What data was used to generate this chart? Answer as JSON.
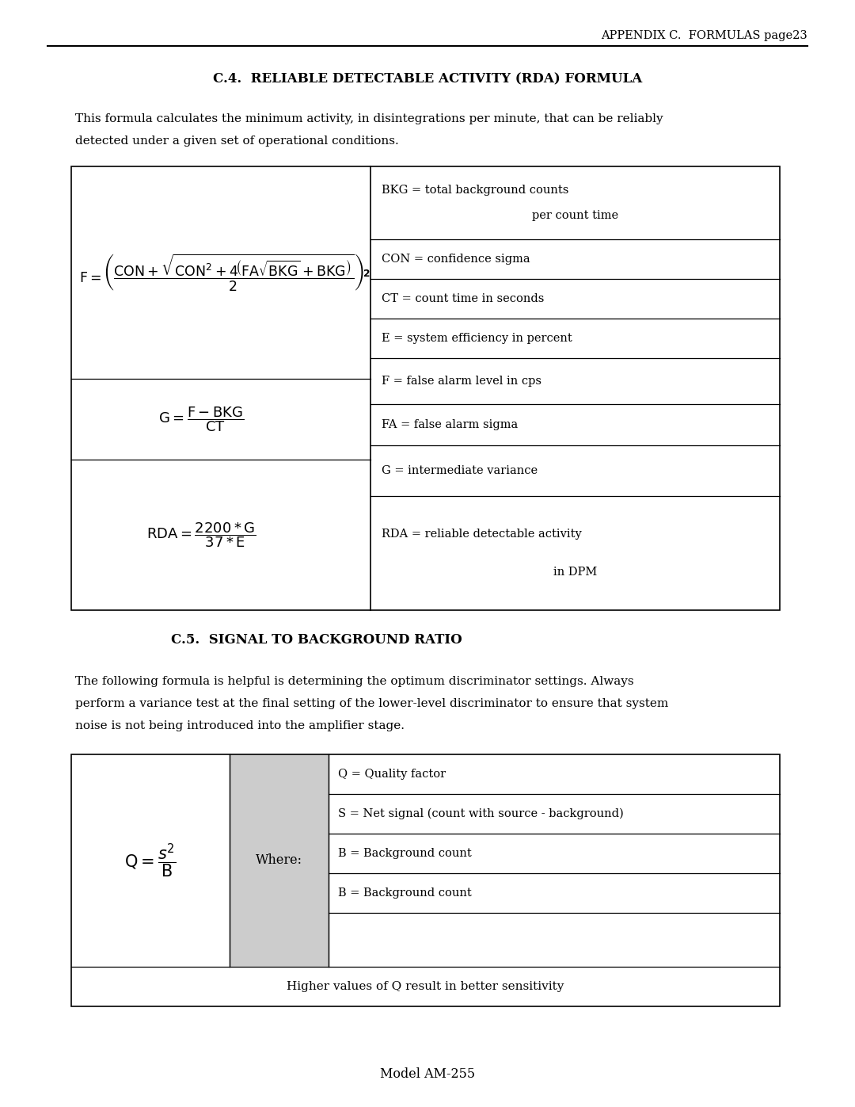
{
  "page_header": "APPENDIX C.  FORMULAS page23",
  "section1_title": "C.4.  RELIABLE DETECTABLE ACTIVITY (RDA) FORMULA",
  "section1_para_1": "This formula calculates the minimum activity, in disintegrations per minute, that can be reliably",
  "section1_para_2": "detected under a given set of operational conditions.",
  "section2_title": "C.5.  SIGNAL TO BACKGROUND RATIO",
  "section2_para_1": "The following formula is helpful is determining the optimum discriminator settings. Always",
  "section2_para_2": "perform a variance test at the final setting of the lower-level discriminator to ensure that system",
  "section2_para_3": "noise is not being introduced into the amplifier stage.",
  "footer": "Model AM-255",
  "bg_color": "#ffffff",
  "text_color": "#000000",
  "table1_right_cells": [
    [
      "BKG = total background counts",
      "per count time"
    ],
    [
      "CON = confidence sigma"
    ],
    [
      "CT = count time in seconds"
    ],
    [
      "E = system efficiency in percent"
    ],
    [
      "F = false alarm level in cps"
    ],
    [
      "FA = false alarm sigma"
    ],
    [
      "G = intermediate variance"
    ],
    [
      "RDA = reliable detectable activity",
      "in DPM"
    ]
  ],
  "table2_right_cells": [
    "Q = Quality factor",
    "S = Net signal (count with source - background)",
    "B = Background count",
    "B = Background count"
  ],
  "table2_footer": "Higher values of Q result in better sensitivity"
}
